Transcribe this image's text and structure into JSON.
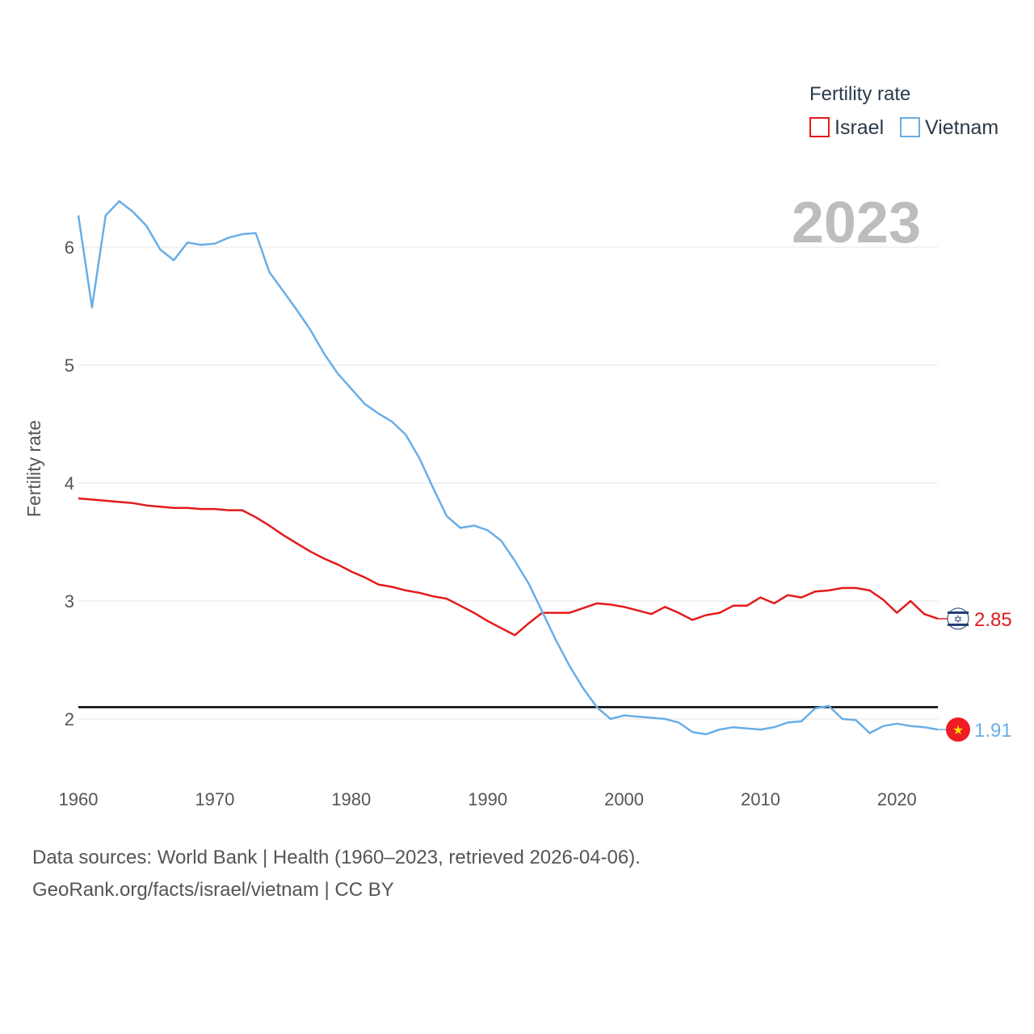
{
  "chart_data": {
    "type": "line",
    "title": "2023",
    "xlabel": "",
    "ylabel": "Fertility rate",
    "xlim": [
      1960,
      2023
    ],
    "ylim": [
      1.5,
      6.5
    ],
    "x_ticks": [
      1960,
      1970,
      1980,
      1990,
      2000,
      2010,
      2020
    ],
    "y_ticks": [
      2,
      3,
      4,
      5,
      6
    ],
    "grid": true,
    "reference_line": 2.1,
    "legend": {
      "title": "Fertility rate",
      "placement": "top-right"
    },
    "x": [
      1960,
      1961,
      1962,
      1963,
      1964,
      1965,
      1966,
      1967,
      1968,
      1969,
      1970,
      1971,
      1972,
      1973,
      1974,
      1975,
      1976,
      1977,
      1978,
      1979,
      1980,
      1981,
      1982,
      1983,
      1984,
      1985,
      1986,
      1987,
      1988,
      1989,
      1990,
      1991,
      1992,
      1993,
      1994,
      1995,
      1996,
      1997,
      1998,
      1999,
      2000,
      2001,
      2002,
      2003,
      2004,
      2005,
      2006,
      2007,
      2008,
      2009,
      2010,
      2011,
      2012,
      2013,
      2014,
      2015,
      2016,
      2017,
      2018,
      2019,
      2020,
      2021,
      2022,
      2023
    ],
    "series": [
      {
        "name": "Israel",
        "color": "#e31a1c",
        "end_label": "2.85",
        "values": [
          3.87,
          3.86,
          3.85,
          3.84,
          3.83,
          3.81,
          3.8,
          3.79,
          3.79,
          3.78,
          3.78,
          3.77,
          3.77,
          3.71,
          3.64,
          3.56,
          3.49,
          3.42,
          3.36,
          3.31,
          3.25,
          3.2,
          3.14,
          3.12,
          3.09,
          3.07,
          3.04,
          3.02,
          2.96,
          2.9,
          2.83,
          2.77,
          2.71,
          2.81,
          2.9,
          2.9,
          2.9,
          2.94,
          2.98,
          2.97,
          2.95,
          2.92,
          2.89,
          2.95,
          2.9,
          2.84,
          2.88,
          2.9,
          2.96,
          2.96,
          3.03,
          2.98,
          3.05,
          3.03,
          3.08,
          3.09,
          3.11,
          3.11,
          3.09,
          3.01,
          2.9,
          3.0,
          2.89,
          2.85
        ]
      },
      {
        "name": "Vietnam",
        "color": "#6aaee6",
        "end_label": "1.91",
        "values": [
          6.27,
          5.49,
          6.27,
          6.39,
          6.3,
          6.18,
          5.98,
          5.89,
          6.04,
          6.02,
          6.03,
          6.08,
          6.11,
          6.12,
          5.79,
          5.63,
          5.47,
          5.3,
          5.1,
          4.93,
          4.8,
          4.67,
          4.59,
          4.52,
          4.41,
          4.21,
          3.96,
          3.72,
          3.62,
          3.64,
          3.6,
          3.51,
          3.34,
          3.15,
          2.91,
          2.67,
          2.45,
          2.26,
          2.1,
          2.0,
          2.03,
          2.02,
          2.01,
          2.0,
          1.97,
          1.89,
          1.87,
          1.91,
          1.93,
          1.92,
          1.91,
          1.93,
          1.97,
          1.98,
          2.09,
          2.11,
          2.0,
          1.99,
          1.88,
          1.94,
          1.96,
          1.94,
          1.93,
          1.91
        ]
      }
    ]
  },
  "footer": {
    "line1": "Data sources: World Bank | Health (1960–2023, retrieved 2026-04-06).",
    "line2": "GeoRank.org/facts/israel/vietnam | CC BY"
  },
  "icons": {
    "israel": "israel-flag-icon",
    "vietnam": "vietnam-flag-icon"
  }
}
